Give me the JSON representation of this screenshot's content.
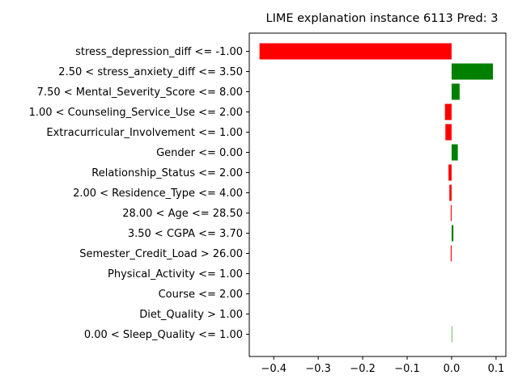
{
  "chart_data": {
    "type": "bar",
    "orientation": "horizontal",
    "title": "LIME explanation instance 6113 Pred: 3",
    "xlabel": "",
    "ylabel": "",
    "xlim": [
      -0.455,
      0.122
    ],
    "xticks": [
      -0.4,
      -0.3,
      -0.2,
      -0.1,
      0.0,
      0.1
    ],
    "xtick_labels": [
      "−0.4",
      "−0.3",
      "−0.2",
      "−0.1",
      "0.0",
      "0.1"
    ],
    "grid": false,
    "positive_color": "#008000",
    "negative_color": "#ff0000",
    "categories": [
      "stress_depression_diff <= -1.00",
      "2.50 < stress_anxiety_diff <= 3.50",
      "7.50 < Mental_Severity_Score <= 8.00",
      "1.00 < Counseling_Service_Use <= 2.00",
      "Extracurricular_Involvement <= 1.00",
      "Gender <= 0.00",
      "Relationship_Status <= 2.00",
      "2.00 < Residence_Type <= 4.00",
      "28.00 < Age <= 28.50",
      "3.50 < CGPA <= 3.70",
      "Semester_Credit_Load > 26.00",
      "Physical_Activity <= 1.00",
      "Course <= 2.00",
      "Diet_Quality > 1.00",
      "0.00 < Sleep_Quality <= 1.00"
    ],
    "values": [
      -0.432,
      0.093,
      0.018,
      -0.015,
      -0.014,
      0.014,
      -0.007,
      -0.005,
      -0.002,
      0.004,
      -0.002,
      0.0,
      0.0,
      0.0,
      0.001
    ]
  }
}
